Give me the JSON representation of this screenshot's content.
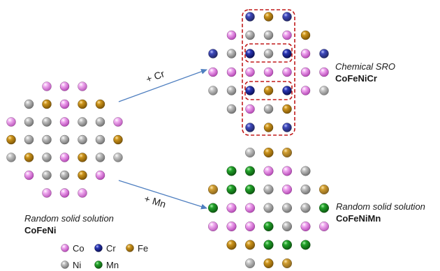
{
  "colors": {
    "Co": "#e27be2",
    "Cr": "#16218c",
    "Fe": "#b6800d",
    "Ni": "#a5a5a5",
    "Mn": "#16881c",
    "arrow": "#4f7fc0",
    "sro_box": "#c01818"
  },
  "arrows": {
    "cr_label": "+ Cr",
    "mn_label": "+ Mn"
  },
  "left_panel": {
    "caption_line1": "Random solid solution",
    "caption_line2": "CoFeNi",
    "grid": [
      "..CCC..",
      ".NFCFF.",
      "CNNCNNC",
      "FNNNNNF",
      "NFNCFNN",
      ".CNNFC.",
      "..CCC.."
    ]
  },
  "top_right_panel": {
    "caption_line1": "Chemical SRO",
    "caption_line2": "CoFeNiCr",
    "grid": [
      "..RFR..",
      ".CNNCF.",
      "RNRNRCR",
      "CCCCCCC",
      "NNRFRCN",
      ".NCNF..",
      "..RFR.."
    ]
  },
  "bottom_right_panel": {
    "caption_line1": "Random solid solution",
    "caption_line2": "CoFeNiMn",
    "grid": [
      "..NFF..",
      ".MMCCN.",
      "FMMNCNF",
      "MCCNNNM",
      "CCCMNCC",
      ".FFMMM.",
      "..NFF.."
    ]
  },
  "legend": {
    "items": [
      {
        "code": "C",
        "label": "Co",
        "color": "#e27be2"
      },
      {
        "code": "R",
        "label": "Cr",
        "color": "#16218c"
      },
      {
        "code": "F",
        "label": "Fe",
        "color": "#b6800d"
      },
      {
        "code": "N",
        "label": "Ni",
        "color": "#a5a5a5"
      },
      {
        "code": "M",
        "label": "Mn",
        "color": "#16881c"
      }
    ]
  }
}
